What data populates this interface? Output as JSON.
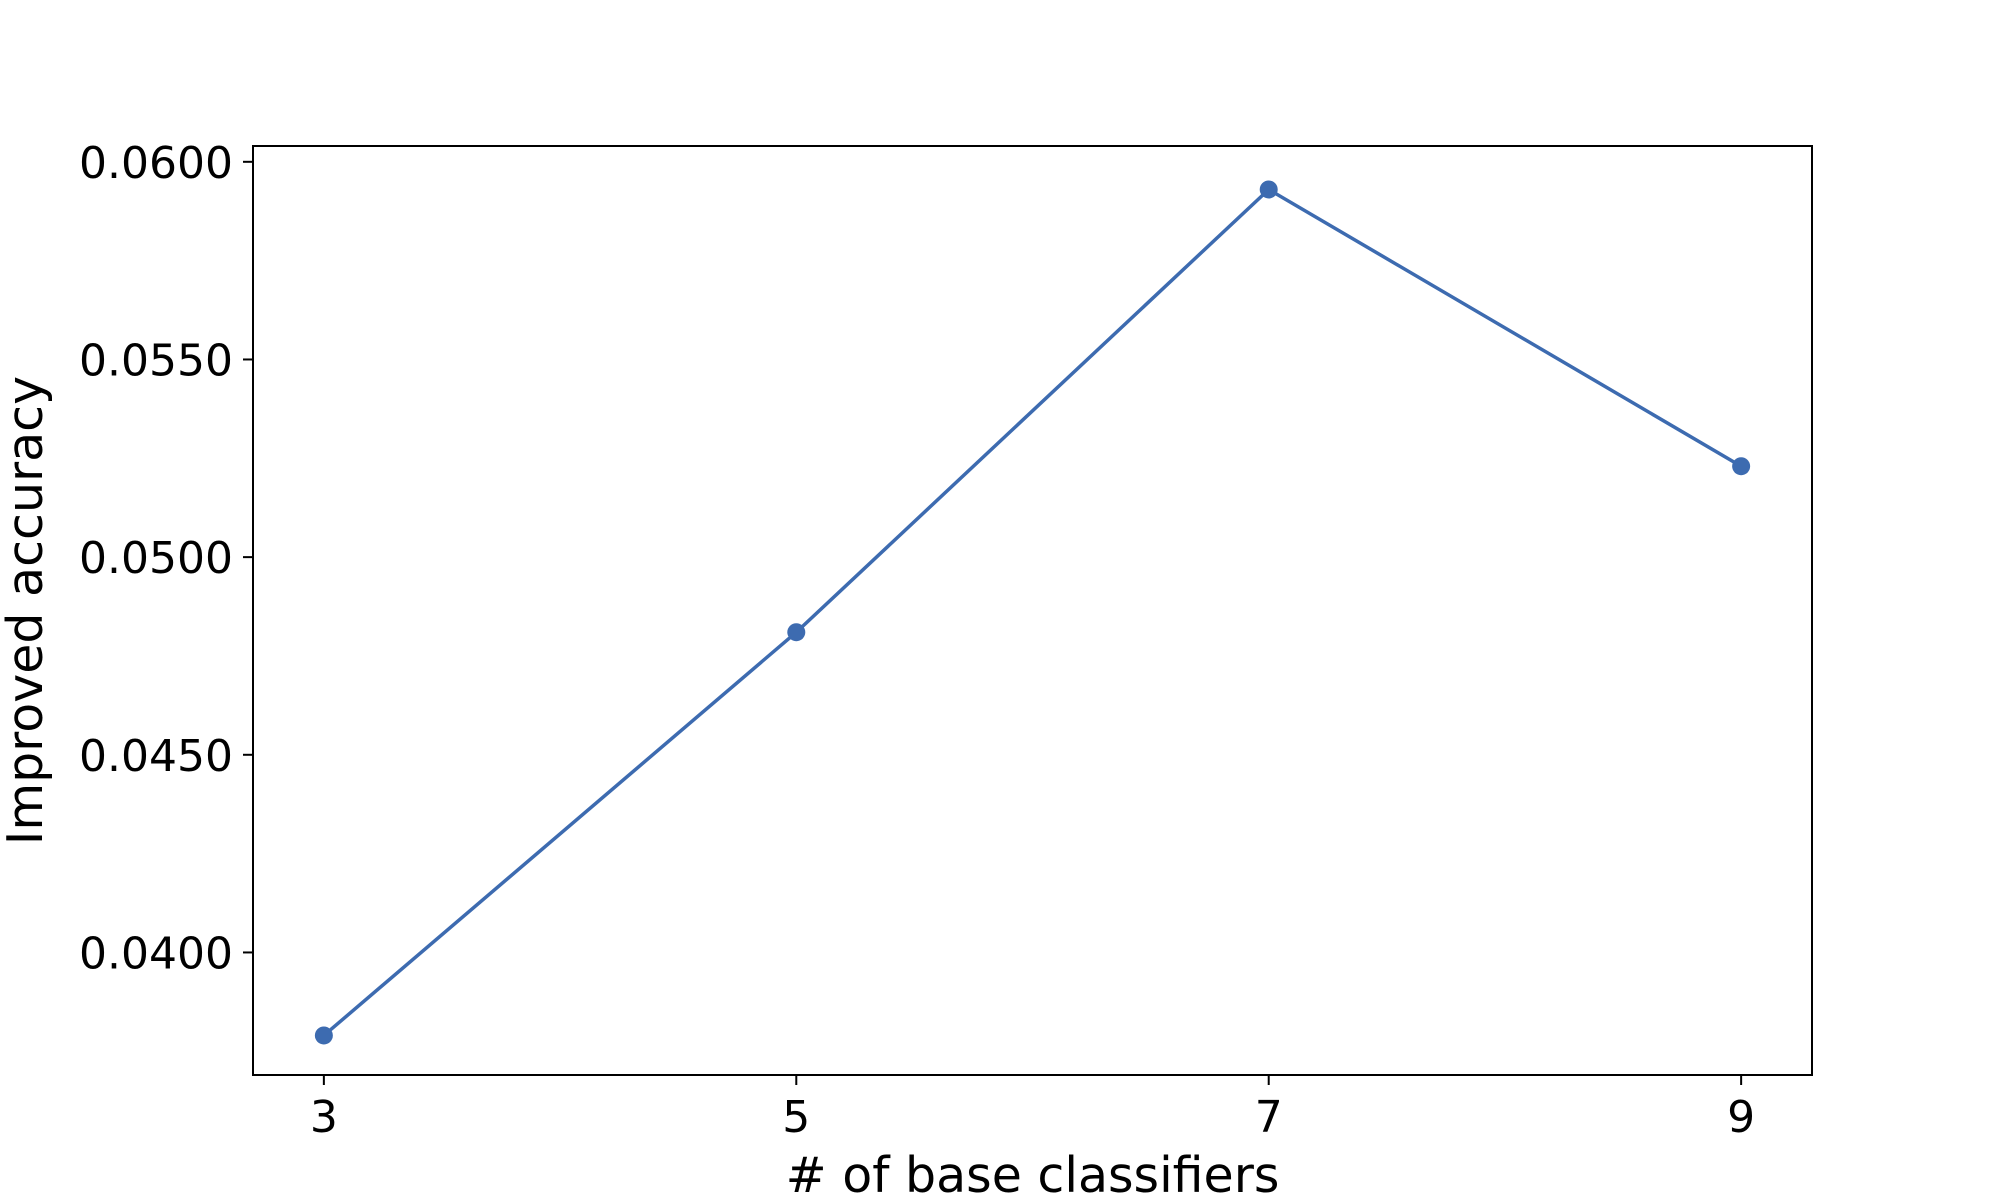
{
  "chart_data": {
    "type": "line",
    "title": "",
    "xlabel": "# of base classifiers",
    "ylabel": "Improved accuracy",
    "x": [
      3,
      5,
      7,
      9
    ],
    "x_ticks": [
      "3",
      "5",
      "7",
      "9"
    ],
    "xlim": [
      2.7,
      9.3
    ],
    "y_ticks": [
      "0.0400",
      "0.0450",
      "0.0500",
      "0.0550",
      "0.0600"
    ],
    "ylim": [
      0.0369,
      0.0604
    ],
    "series": [
      {
        "values": [
          0.0379,
          0.0481,
          0.0593,
          0.0523
        ],
        "color": "#3d6bb0"
      }
    ],
    "grid": false,
    "legend": "none",
    "marker": "circle"
  }
}
